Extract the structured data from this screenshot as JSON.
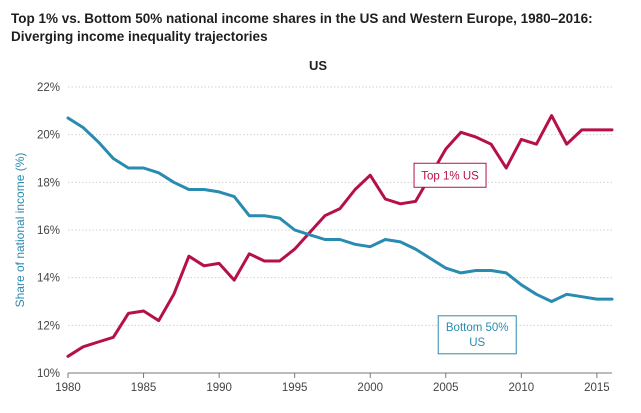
{
  "header": {
    "title_line1": "Top 1% vs. Bottom 50% national income shares in the US and Western Europe, 1980–2016:",
    "title_line2": "Diverging income inequality trajectories"
  },
  "chart_data": {
    "type": "line",
    "title": "US",
    "xlabel": "",
    "ylabel": "Share of national income (%)",
    "xlim": [
      1980,
      2016
    ],
    "ylim": [
      10,
      22
    ],
    "x_ticks": [
      1980,
      1985,
      1990,
      1995,
      2000,
      2005,
      2010,
      2015
    ],
    "x_tick_labels": [
      "1980",
      "1985",
      "1990",
      "1995",
      "2000",
      "2005",
      "2010",
      "2015"
    ],
    "y_ticks": [
      10,
      12,
      14,
      16,
      18,
      20,
      22
    ],
    "y_tick_labels": [
      "10%",
      "12%",
      "14%",
      "16%",
      "18%",
      "20%",
      "22%"
    ],
    "grid": "horizontal",
    "x": [
      1980,
      1981,
      1982,
      1983,
      1984,
      1985,
      1986,
      1987,
      1988,
      1989,
      1990,
      1991,
      1992,
      1993,
      1994,
      1995,
      1996,
      1997,
      1998,
      1999,
      2000,
      2001,
      2002,
      2003,
      2004,
      2005,
      2006,
      2007,
      2008,
      2009,
      2010,
      2011,
      2012,
      2013,
      2014,
      2015,
      2016
    ],
    "series": [
      {
        "name": "Top 1% US",
        "label_text": "Top 1% US",
        "color": "#b5104a",
        "values": [
          10.7,
          11.1,
          11.3,
          11.5,
          12.5,
          12.6,
          12.2,
          13.3,
          14.9,
          14.5,
          14.6,
          13.9,
          15.0,
          14.7,
          14.7,
          15.2,
          15.9,
          16.6,
          16.9,
          17.7,
          18.3,
          17.3,
          17.1,
          17.2,
          18.3,
          19.4,
          20.1,
          19.9,
          19.6,
          18.6,
          19.8,
          19.6,
          20.8,
          19.6,
          20.2,
          20.2,
          20.2
        ]
      },
      {
        "name": "Bottom 50% US",
        "label_lines": [
          "Bottom 50%",
          "US"
        ],
        "color": "#2a8bb0",
        "values": [
          20.7,
          20.3,
          19.7,
          19.0,
          18.6,
          18.6,
          18.4,
          18.0,
          17.7,
          17.7,
          17.6,
          17.4,
          16.6,
          16.6,
          16.5,
          16.0,
          15.8,
          15.6,
          15.6,
          15.4,
          15.3,
          15.6,
          15.5,
          15.2,
          14.8,
          14.4,
          14.2,
          14.3,
          14.3,
          14.2,
          13.7,
          13.3,
          13.0,
          13.3,
          13.2,
          13.1,
          13.1
        ]
      }
    ]
  }
}
